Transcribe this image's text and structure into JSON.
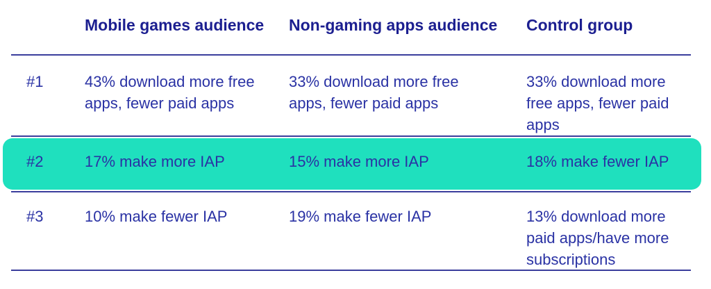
{
  "chart_data": {
    "type": "table",
    "columns": [
      "",
      "Mobile games audience",
      "Non-gaming apps audience",
      "Control group"
    ],
    "rows": [
      [
        "#1",
        "43% download more free apps, fewer paid apps",
        "33% download more free apps, fewer paid apps",
        "33% download more free apps, fewer paid apps"
      ],
      [
        "#2",
        "17% make more IAP",
        "15% make more IAP",
        "18% make fewer IAP"
      ],
      [
        "#3",
        "10% make fewer IAP",
        "19% make fewer IAP",
        "13% download more paid apps/have more subscriptions"
      ]
    ],
    "highlighted_row": "#2",
    "title": "",
    "legend_position": "none",
    "grid": "horizontal-rules"
  },
  "table": {
    "header": {
      "columns": [
        "Mobile games audience",
        "Non-gaming apps audience",
        "Control group"
      ]
    },
    "rows": [
      {
        "rank": "#1",
        "highlighted": false,
        "cells": [
          {
            "lines": [
              "43% download more free",
              "apps, fewer paid apps"
            ]
          },
          {
            "lines": [
              "33% download more free",
              "apps, fewer paid apps"
            ]
          },
          {
            "lines": [
              "33% download more",
              "free apps, fewer paid",
              "apps"
            ]
          }
        ]
      },
      {
        "rank": "#2",
        "highlighted": true,
        "cells": [
          {
            "lines": [
              "17% make more IAP"
            ]
          },
          {
            "lines": [
              "15% make more IAP"
            ]
          },
          {
            "lines": [
              "18% make fewer IAP"
            ]
          }
        ]
      },
      {
        "rank": "#3",
        "highlighted": false,
        "cells": [
          {
            "lines": [
              "10% make fewer IAP"
            ]
          },
          {
            "lines": [
              "19% make fewer IAP"
            ]
          },
          {
            "lines": [
              "13% download more",
              "paid apps/have more",
              "subscriptions"
            ]
          }
        ]
      }
    ]
  },
  "colors": {
    "header_text": "#1c1f90",
    "body_text": "#2a32a4",
    "divider": "#3a3d9c",
    "highlight": "#1fe0be",
    "background": "#ffffff"
  }
}
